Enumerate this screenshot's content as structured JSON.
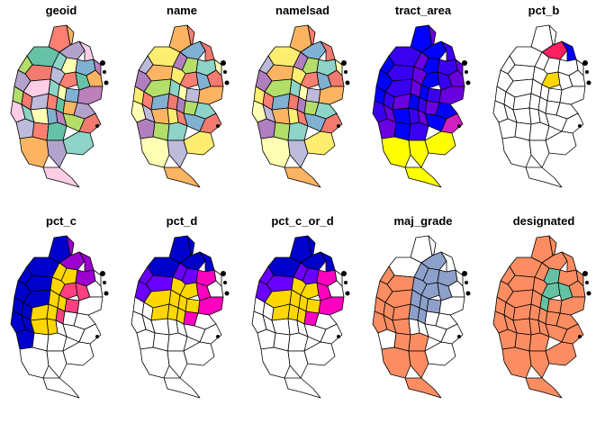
{
  "figure": {
    "panels": [
      {
        "title": "geoid",
        "palette": [
          "#b3a3cc",
          "#f27a6e",
          "#8dd3c7",
          "#fb8072",
          "#80b1d3",
          "#fdb462",
          "#b3de69",
          "#fccde5",
          "#bebada",
          "#ffffb3",
          "#66c2a5",
          "#bc80bd"
        ],
        "fill_mode": "categorical"
      },
      {
        "title": "name",
        "palette": [
          "#ffed6f",
          "#f27a6e",
          "#8dd3c7",
          "#fdb462",
          "#80b1d3",
          "#b3de69",
          "#bebada",
          "#fb8072",
          "#b07fc0",
          "#ffffb3"
        ],
        "fill_mode": "categorical"
      },
      {
        "title": "namelsad",
        "palette": [
          "#ffed6f",
          "#f27a6e",
          "#8dd3c7",
          "#fdb462",
          "#80b1d3",
          "#b3de69",
          "#bebada",
          "#fb8072",
          "#b07fc0",
          "#ffffb3"
        ],
        "fill_mode": "categorical"
      },
      {
        "title": "tract_area",
        "palette": [
          "#0000ff",
          "#3a00f0",
          "#6a00e0",
          "#d020c0",
          "#ffff00"
        ],
        "fill_mode": "continuous"
      },
      {
        "title": "pct_b",
        "palette": [
          "#ffffff",
          "#0000ff",
          "#ff2060",
          "#ffd700"
        ],
        "fill_mode": "sparse"
      },
      {
        "title": "pct_c",
        "palette": [
          "#ffffff",
          "#0000cc",
          "#ffd700",
          "#ff4080",
          "#9b00d0"
        ],
        "fill_mode": "mixed"
      },
      {
        "title": "pct_d",
        "palette": [
          "#ffffff",
          "#0000cc",
          "#6a00ff",
          "#ff00c0",
          "#ffd700"
        ],
        "fill_mode": "mixed"
      },
      {
        "title": "pct_c_or_d",
        "palette": [
          "#ffffff",
          "#0000cc",
          "#6a00ff",
          "#ff00c0",
          "#ffd700",
          "#ffa500"
        ],
        "fill_mode": "mixed"
      },
      {
        "title": "maj_grade",
        "palette": [
          "#ffffff",
          "#8da0cb",
          "#fc8d62"
        ],
        "fill_mode": "grade"
      },
      {
        "title": "designated",
        "palette": [
          "#fc8d62",
          "#66c2a5"
        ],
        "fill_mode": "designated"
      }
    ]
  }
}
